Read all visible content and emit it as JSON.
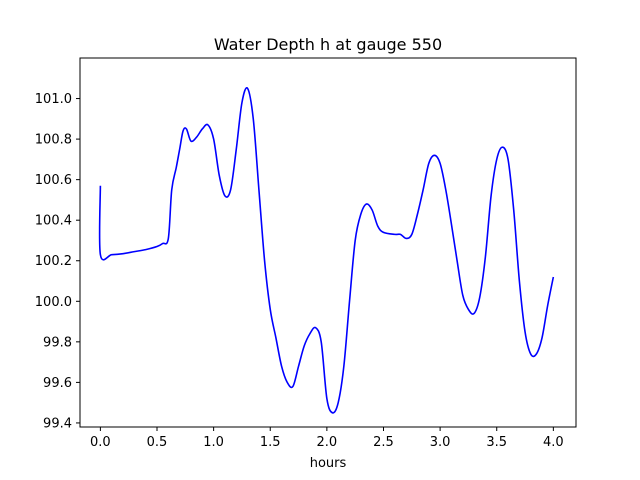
{
  "chart_data": {
    "type": "line",
    "title": "Water Depth h at gauge 550",
    "xlabel": "hours",
    "ylabel": "",
    "xlim": [
      -0.18,
      4.2
    ],
    "ylim": [
      99.38,
      101.2
    ],
    "xticks": [
      0.0,
      0.5,
      1.0,
      1.5,
      2.0,
      2.5,
      3.0,
      3.5,
      4.0
    ],
    "xtick_labels": [
      "0.0",
      "0.5",
      "1.0",
      "1.5",
      "2.0",
      "2.5",
      "3.0",
      "3.5",
      "4.0"
    ],
    "yticks": [
      99.4,
      99.6,
      99.8,
      100.0,
      100.2,
      100.4,
      100.6,
      100.8,
      101.0
    ],
    "ytick_labels": [
      "99.4",
      "99.6",
      "99.8",
      "100.0",
      "100.2",
      "100.4",
      "100.6",
      "100.8",
      "101.0"
    ],
    "grid": false,
    "series": [
      {
        "color": "#0000ff",
        "points": [
          [
            0.0,
            100.57
          ],
          [
            0.0,
            100.23
          ],
          [
            0.1,
            100.23
          ],
          [
            0.2,
            100.235
          ],
          [
            0.3,
            100.245
          ],
          [
            0.4,
            100.255
          ],
          [
            0.5,
            100.27
          ],
          [
            0.55,
            100.285
          ],
          [
            0.6,
            100.31
          ],
          [
            0.63,
            100.55
          ],
          [
            0.67,
            100.66
          ],
          [
            0.7,
            100.75
          ],
          [
            0.73,
            100.84
          ],
          [
            0.76,
            100.85
          ],
          [
            0.8,
            100.79
          ],
          [
            0.85,
            100.81
          ],
          [
            0.9,
            100.85
          ],
          [
            0.95,
            100.87
          ],
          [
            1.0,
            100.8
          ],
          [
            1.05,
            100.62
          ],
          [
            1.1,
            100.52
          ],
          [
            1.15,
            100.55
          ],
          [
            1.2,
            100.75
          ],
          [
            1.25,
            100.98
          ],
          [
            1.3,
            101.05
          ],
          [
            1.35,
            100.9
          ],
          [
            1.4,
            100.55
          ],
          [
            1.45,
            100.2
          ],
          [
            1.5,
            99.96
          ],
          [
            1.55,
            99.82
          ],
          [
            1.6,
            99.68
          ],
          [
            1.65,
            99.6
          ],
          [
            1.7,
            99.58
          ],
          [
            1.75,
            99.68
          ],
          [
            1.8,
            99.78
          ],
          [
            1.85,
            99.84
          ],
          [
            1.9,
            99.87
          ],
          [
            1.95,
            99.8
          ],
          [
            2.0,
            99.52
          ],
          [
            2.05,
            99.45
          ],
          [
            2.1,
            99.5
          ],
          [
            2.15,
            99.68
          ],
          [
            2.2,
            100.0
          ],
          [
            2.25,
            100.3
          ],
          [
            2.3,
            100.43
          ],
          [
            2.35,
            100.48
          ],
          [
            2.4,
            100.45
          ],
          [
            2.45,
            100.37
          ],
          [
            2.5,
            100.34
          ],
          [
            2.6,
            100.33
          ],
          [
            2.65,
            100.33
          ],
          [
            2.7,
            100.31
          ],
          [
            2.75,
            100.33
          ],
          [
            2.8,
            100.43
          ],
          [
            2.85,
            100.55
          ],
          [
            2.9,
            100.68
          ],
          [
            2.95,
            100.72
          ],
          [
            3.0,
            100.68
          ],
          [
            3.05,
            100.55
          ],
          [
            3.1,
            100.38
          ],
          [
            3.15,
            100.2
          ],
          [
            3.2,
            100.03
          ],
          [
            3.25,
            99.96
          ],
          [
            3.3,
            99.94
          ],
          [
            3.35,
            100.02
          ],
          [
            3.4,
            100.22
          ],
          [
            3.45,
            100.52
          ],
          [
            3.5,
            100.7
          ],
          [
            3.55,
            100.76
          ],
          [
            3.6,
            100.7
          ],
          [
            3.65,
            100.45
          ],
          [
            3.7,
            100.1
          ],
          [
            3.75,
            99.85
          ],
          [
            3.8,
            99.74
          ],
          [
            3.85,
            99.74
          ],
          [
            3.9,
            99.82
          ],
          [
            3.95,
            99.98
          ],
          [
            4.0,
            100.12
          ]
        ]
      }
    ]
  }
}
